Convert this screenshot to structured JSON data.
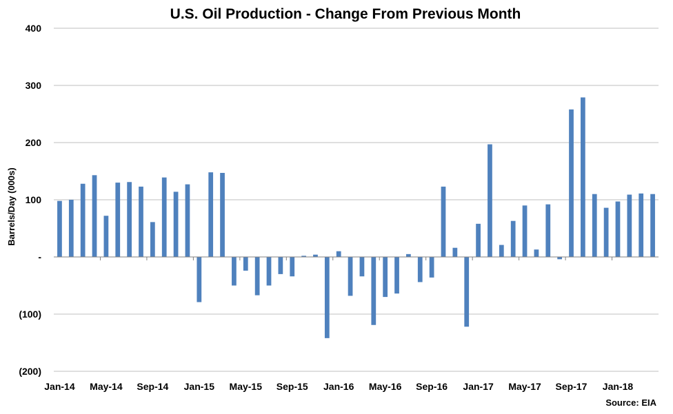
{
  "chart_data": {
    "type": "bar",
    "title": "U.S. Oil Production - Change From Previous Month",
    "xlabel": "",
    "ylabel": "Barrels/Day (000s)",
    "source": "Source: EIA",
    "ylim": [
      -200,
      400
    ],
    "yticks": [
      400,
      300,
      200,
      100,
      0,
      -100,
      -200
    ],
    "ytick_labels": [
      "400",
      "300",
      "200",
      "100",
      "-",
      "(100)",
      "(200)"
    ],
    "x_tick_labels": [
      "Jan-14",
      "May-14",
      "Sep-14",
      "Jan-15",
      "May-15",
      "Sep-15",
      "Jan-16",
      "May-16",
      "Sep-16",
      "Jan-17",
      "May-17",
      "Sep-17",
      "Jan-18"
    ],
    "grid": true,
    "bar_color": "#4F81BD",
    "categories": [
      "Jan-14",
      "Feb-14",
      "Mar-14",
      "Apr-14",
      "May-14",
      "Jun-14",
      "Jul-14",
      "Aug-14",
      "Sep-14",
      "Oct-14",
      "Nov-14",
      "Dec-14",
      "Jan-15",
      "Feb-15",
      "Mar-15",
      "Apr-15",
      "May-15",
      "Jun-15",
      "Jul-15",
      "Aug-15",
      "Sep-15",
      "Oct-15",
      "Nov-15",
      "Dec-15",
      "Jan-16",
      "Feb-16",
      "Mar-16",
      "Apr-16",
      "May-16",
      "Jun-16",
      "Jul-16",
      "Aug-16",
      "Sep-16",
      "Oct-16",
      "Nov-16",
      "Dec-16",
      "Jan-17",
      "Feb-17",
      "Mar-17",
      "Apr-17",
      "May-17",
      "Jun-17",
      "Jul-17",
      "Aug-17",
      "Sep-17",
      "Oct-17",
      "Nov-17",
      "Dec-17",
      "Jan-18",
      "Feb-18",
      "Mar-18",
      "Apr-18"
    ],
    "values": [
      98,
      100,
      128,
      143,
      72,
      130,
      131,
      123,
      61,
      139,
      114,
      127,
      -79,
      148,
      147,
      -50,
      -24,
      -67,
      -50,
      -30,
      -34,
      2,
      4,
      -142,
      10,
      -68,
      -34,
      -119,
      -70,
      -64,
      5,
      -44,
      -36,
      123,
      16,
      -122,
      58,
      197,
      21,
      63,
      90,
      13,
      92,
      -4,
      258,
      279,
      110,
      86,
      97,
      109,
      111,
      110
    ]
  }
}
